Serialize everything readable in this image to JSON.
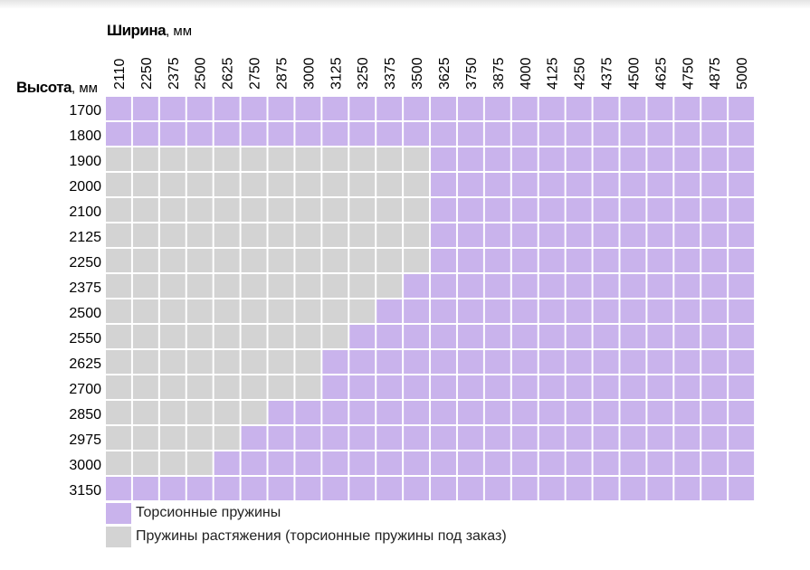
{
  "x_axis": {
    "title": "Ширина",
    "unit": ", мм"
  },
  "y_axis": {
    "title": "Высота",
    "unit": ", мм"
  },
  "colors": {
    "torsion": "#c9b3ec",
    "extension": "#d3d3d3",
    "gridline": "#ffffff"
  },
  "legend": [
    {
      "key": "torsion",
      "label": "Торсионные пружины"
    },
    {
      "key": "extension",
      "label": "Пружины растяжения (торсионные пружины под заказ)"
    }
  ],
  "chart_data": {
    "type": "heatmap",
    "x": [
      "2110",
      "2250",
      "2375",
      "2500",
      "2625",
      "2750",
      "2875",
      "3000",
      "3125",
      "3250",
      "3375",
      "3500",
      "3625",
      "3750",
      "3875",
      "4000",
      "4125",
      "4250",
      "4375",
      "4500",
      "4625",
      "4750",
      "4875",
      "5000"
    ],
    "y": [
      "1700",
      "1800",
      "1900",
      "2000",
      "2100",
      "2125",
      "2250",
      "2375",
      "2500",
      "2550",
      "2625",
      "2700",
      "2850",
      "2975",
      "3000",
      "3150"
    ],
    "xlabel": "Ширина, мм",
    "ylabel": "Высота, мм",
    "categories_legend": {
      "T": "Торсионные пружины",
      "E": "Пружины растяжения (торсионные пружины под заказ)"
    },
    "cells": [
      "TTTTTTTTTTTTTTTTTTTTTTTT",
      "TTTTTTTTTTTTTTTTTTTTTTTT",
      "EEEEEEEEEEEETTTTTTTTTTTT",
      "EEEEEEEEEEEETTTTTTTTTTTT",
      "EEEEEEEEEEEETTTTTTTTTTTT",
      "EEEEEEEEEEEETTTTTTTTTTTT",
      "EEEEEEEEEEEETTTTTTTTTTTT",
      "EEEEEEEEEEETTTTTTTTTTTTT",
      "EEEEEEEEEETTTTTTTTTTTTTT",
      "EEEEEEEEETTTTTTTTTTTTTTT",
      "EEEEEEEETTTTTTTTTTTTTTTT",
      "EEEEEEEETTTTTTTTTTTTTTTT",
      "EEEEEETTTTTTTTTTTTTTTTTT",
      "EEEEETTTTTTTTTTTTTTTTTTT",
      "EEEETTTTTTTTTTTTTTTTTTTT",
      "TTTTTTTTTTTTTTTTTTTTTTTT"
    ]
  }
}
